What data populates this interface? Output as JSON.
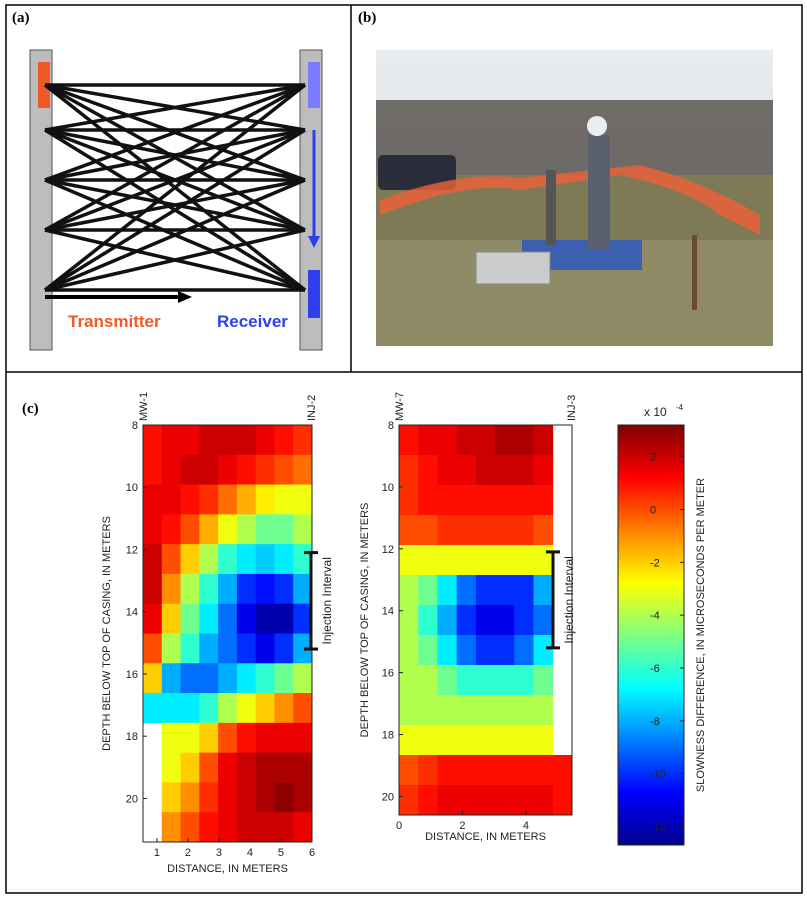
{
  "panels": {
    "a": {
      "label": "(a)",
      "transmitter": "Transmitter",
      "receiver": "Receiver"
    },
    "b": {
      "label": "(b)"
    },
    "c": {
      "label": "(c)"
    }
  },
  "colorbar": {
    "clim": [
      -12.7,
      3.2
    ],
    "ticks": [
      2,
      0,
      -2,
      -4,
      -6,
      -8,
      -10,
      -12
    ],
    "exponent_base": "x 10",
    "exponent": "-4",
    "label": "SLOWNESS DIFFERENCE, IN MICROSECONDS PER METER"
  },
  "chart_data": [
    {
      "type": "heatmap",
      "xlabel": "DISTANCE, IN METERS",
      "ylabel": "DEPTH BELOW TOP OF CASING, IN METERS",
      "well_left": "MW-1",
      "well_right": "INJ-2",
      "interval_label": "Injection Interval",
      "injection_interval": [
        12.1,
        15.2
      ],
      "xlim": [
        0.55,
        6
      ],
      "ylim": [
        8,
        21.4
      ],
      "xticks": [
        1,
        2,
        3,
        4,
        5,
        6
      ],
      "yticks": [
        8,
        10,
        12,
        14,
        16,
        18,
        20
      ],
      "values": [
        [
          1,
          1.5,
          1.5,
          2,
          2,
          2,
          1.5,
          1,
          0.5
        ],
        [
          1,
          1.5,
          2,
          2,
          1.5,
          1,
          0.5,
          0,
          -0.5
        ],
        [
          1.5,
          1.5,
          1,
          0.5,
          -0.5,
          -1.5,
          -2.5,
          -3,
          -3
        ],
        [
          1.5,
          1,
          0,
          -1.5,
          -3,
          -4,
          -5,
          -5,
          -4
        ],
        [
          2,
          0,
          -2,
          -4,
          -6,
          -7,
          -7.5,
          -7,
          -6
        ],
        [
          2,
          -1,
          -4,
          -6,
          -8,
          -10,
          -10.5,
          -10,
          -8
        ],
        [
          1.5,
          -2,
          -5,
          -7,
          -9,
          -11,
          -12,
          -12,
          -10
        ],
        [
          0,
          -4,
          -6,
          -8,
          -9,
          -10,
          -11,
          -10,
          -8
        ],
        [
          -2,
          -8,
          -9,
          -9,
          -8,
          -7,
          -6,
          -5,
          -4
        ],
        [
          -7,
          -7,
          -7,
          -6,
          -4,
          -3,
          -2,
          -1,
          0
        ],
        [
          null,
          -3,
          -3,
          -2,
          0,
          1,
          1.5,
          1.5,
          1.5
        ],
        [
          null,
          -3,
          -2,
          0,
          1.5,
          2,
          2.5,
          2.5,
          2.5
        ],
        [
          null,
          -2,
          -1,
          0.5,
          1.5,
          2,
          2.5,
          3,
          2.5
        ],
        [
          null,
          -1,
          0,
          1,
          1.5,
          2,
          2,
          2,
          1.5
        ]
      ]
    },
    {
      "type": "heatmap",
      "xlabel": "DISTANCE, IN METERS",
      "ylabel": "DEPTH BELOW TOP OF CASING, IN METERS",
      "well_left": "MW-7",
      "well_right": "INJ-3",
      "interval_label": "Injection Interval",
      "injection_interval": [
        12.1,
        15.2
      ],
      "xlim": [
        0,
        5.45
      ],
      "ylim": [
        8,
        20.6
      ],
      "xticks": [
        0,
        2,
        4
      ],
      "yticks": [
        8,
        10,
        12,
        14,
        16,
        18,
        20
      ],
      "values": [
        [
          1,
          1.5,
          1.5,
          2,
          2,
          2.5,
          2.5,
          2,
          null
        ],
        [
          0.5,
          1,
          1.5,
          1.5,
          2,
          2,
          2,
          1.5,
          null
        ],
        [
          0.5,
          1,
          1,
          1,
          1,
          1,
          1,
          1,
          null
        ],
        [
          0,
          0,
          0.5,
          0.5,
          0.5,
          0.5,
          0.5,
          0,
          null
        ],
        [
          -3,
          -3,
          -3,
          -3,
          -3,
          -3,
          -3,
          -3,
          null
        ],
        [
          -4,
          -5,
          -7,
          -9,
          -10,
          -10,
          -10,
          -8,
          null
        ],
        [
          -4,
          -6,
          -8,
          -10,
          -11,
          -11,
          -10,
          -9,
          null
        ],
        [
          -4,
          -5,
          -7,
          -9,
          -10,
          -10,
          -9,
          -7,
          null
        ],
        [
          -4,
          -4,
          -5,
          -6,
          -6,
          -6,
          -6,
          -5,
          null
        ],
        [
          -4,
          -4,
          -4,
          -4,
          -4,
          -4,
          -4,
          -4,
          null
        ],
        [
          -3,
          -3,
          -3,
          -3,
          -3,
          -3,
          -3,
          -3,
          null
        ],
        [
          0,
          0.5,
          1,
          1,
          1,
          1,
          1,
          1,
          1
        ],
        [
          0.5,
          1,
          1.5,
          1.5,
          1.5,
          1.5,
          1.5,
          1.5,
          1
        ]
      ]
    }
  ]
}
